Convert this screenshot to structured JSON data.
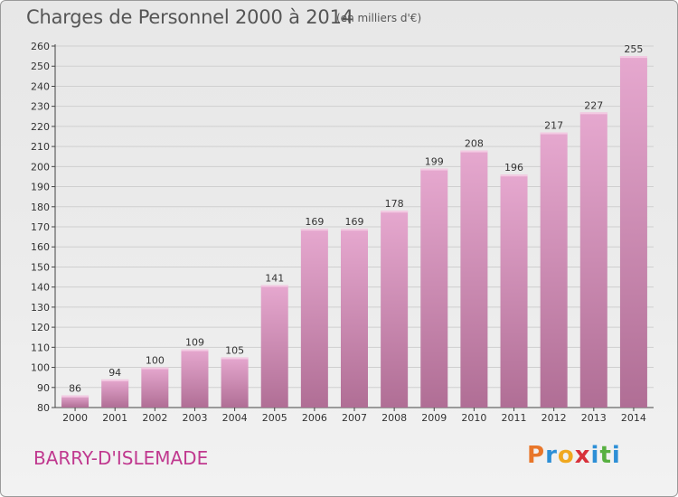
{
  "header": {
    "title": "Charges de Personnel 2000 à 2014",
    "subtitle": "(en milliers d'€)"
  },
  "footer": {
    "place": "BARRY-D'ISLEMADE",
    "logo_letters": [
      {
        "ch": "P",
        "color": "#e8762a"
      },
      {
        "ch": "r",
        "color": "#2d8fd6"
      },
      {
        "ch": "o",
        "color": "#f0a81f"
      },
      {
        "ch": "x",
        "color": "#d8313a"
      },
      {
        "ch": "i",
        "color": "#2d8fd6"
      },
      {
        "ch": "t",
        "color": "#58b041"
      },
      {
        "ch": "i",
        "color": "#2d8fd6"
      }
    ]
  },
  "chart_data": {
    "type": "bar",
    "categories": [
      "2000",
      "2001",
      "2002",
      "2003",
      "2004",
      "2005",
      "2006",
      "2007",
      "2008",
      "2009",
      "2010",
      "2011",
      "2012",
      "2013",
      "2014"
    ],
    "values": [
      86,
      94,
      100,
      109,
      105,
      141,
      169,
      169,
      178,
      199,
      208,
      196,
      217,
      227,
      255
    ],
    "ylim": [
      80,
      260
    ],
    "yticks": [
      80,
      90,
      100,
      110,
      120,
      130,
      140,
      150,
      160,
      170,
      180,
      190,
      200,
      210,
      220,
      230,
      240,
      250,
      260
    ],
    "grid": true,
    "bar_color_top": "#e6a8cf",
    "bar_color_bottom": "#b06e95"
  }
}
